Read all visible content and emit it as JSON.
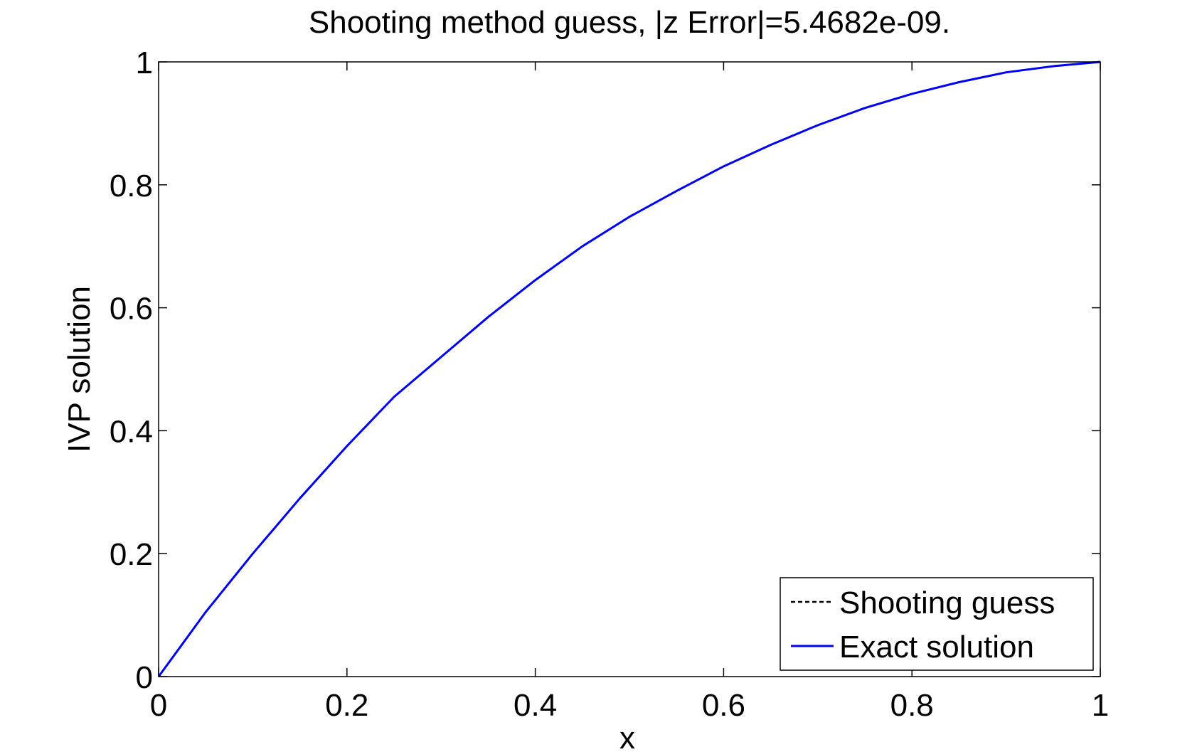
{
  "chart_data": {
    "type": "line",
    "title": "Shooting method guess, |z Error|=5.4682e-09.",
    "xlabel": "x",
    "ylabel": "IVP solution",
    "xlim": [
      0,
      1
    ],
    "ylim": [
      0,
      1
    ],
    "xticks": [
      0,
      0.2,
      0.4,
      0.6,
      0.8,
      1
    ],
    "yticks": [
      0,
      0.2,
      0.4,
      0.6,
      0.8,
      1
    ],
    "xtick_labels": [
      "0",
      "0.2",
      "0.4",
      "0.6",
      "0.8",
      "1"
    ],
    "ytick_labels": [
      "0",
      "0.2",
      "0.4",
      "0.6",
      "0.8",
      "1"
    ],
    "grid": false,
    "legend_position": "bottom-right",
    "series": [
      {
        "name": "Shooting guess",
        "style": "dashed",
        "color": "#000000",
        "x": [
          0,
          0.05,
          0.1,
          0.15,
          0.2,
          0.25,
          0.3,
          0.35,
          0.4,
          0.45,
          0.5,
          0.55,
          0.6,
          0.65,
          0.7,
          0.75,
          0.8,
          0.85,
          0.9,
          0.95,
          1.0
        ],
        "y": [
          0,
          0.105,
          0.2,
          0.29,
          0.375,
          0.455,
          0.52,
          0.585,
          0.645,
          0.7,
          0.748,
          0.79,
          0.83,
          0.865,
          0.897,
          0.925,
          0.948,
          0.967,
          0.983,
          0.993,
          1.0
        ]
      },
      {
        "name": "Exact solution",
        "style": "solid",
        "color": "#0000ff",
        "x": [
          0,
          0.05,
          0.1,
          0.15,
          0.2,
          0.25,
          0.3,
          0.35,
          0.4,
          0.45,
          0.5,
          0.55,
          0.6,
          0.65,
          0.7,
          0.75,
          0.8,
          0.85,
          0.9,
          0.95,
          1.0
        ],
        "y": [
          0,
          0.105,
          0.2,
          0.29,
          0.375,
          0.455,
          0.52,
          0.585,
          0.645,
          0.7,
          0.748,
          0.79,
          0.83,
          0.865,
          0.897,
          0.925,
          0.948,
          0.967,
          0.983,
          0.993,
          1.0
        ]
      }
    ]
  }
}
